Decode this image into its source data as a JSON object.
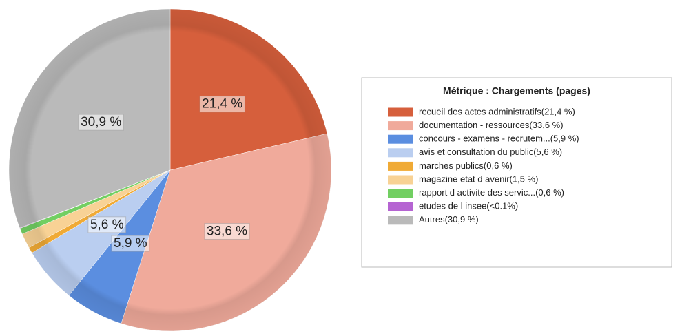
{
  "chart_data": {
    "type": "pie",
    "legend_title": "Métrique :  Chargements (pages)",
    "categories": [
      "recueil des actes administratifs(21,4 %)",
      "documentation - ressources(33,6 %)",
      "concours - examens - recrutem...(5,9 %)",
      "avis et consultation du public(5,6 %)",
      "marches publics(0,6 %)",
      "magazine etat d avenir(1,5 %)",
      "rapport d activite des servic...(0,6 %)",
      "etudes de l insee(<0.1%)",
      "Autres(30,9 %)"
    ],
    "values": [
      21.4,
      33.6,
      5.9,
      5.6,
      0.6,
      1.5,
      0.6,
      0.05,
      30.9
    ],
    "value_labels": [
      "21,4 %",
      "33,6 %",
      "5,9 %",
      "5,6 %",
      null,
      null,
      null,
      null,
      "30,9 %"
    ],
    "colors": [
      "#d65f3c",
      "#f0aa9b",
      "#5b8ee0",
      "#bacef0",
      "#f0aa35",
      "#f8d295",
      "#72cf62",
      "#b564d2",
      "#bababa"
    ],
    "legend": "right"
  }
}
